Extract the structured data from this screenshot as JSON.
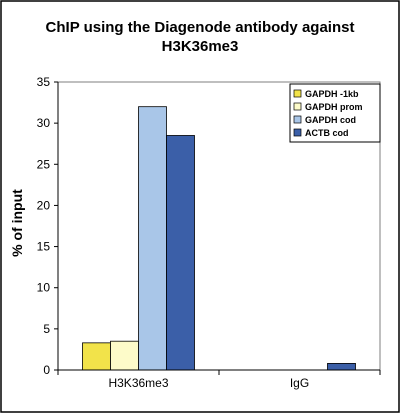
{
  "chart_data": {
    "type": "bar",
    "title": "ChIP using the Diagenode antibody against H3K36me3",
    "title_lines": [
      "ChIP using the Diagenode antibody against",
      "H3K36me3"
    ],
    "ylabel": "% of input",
    "xlabel": "",
    "categories": [
      "H3K36me3",
      "IgG"
    ],
    "ylim": [
      0,
      35
    ],
    "yticks": [
      0,
      5,
      10,
      15,
      20,
      25,
      30,
      35
    ],
    "grid": false,
    "legend_position": "top-right",
    "series": [
      {
        "name": "GAPDH -1kb",
        "color": "#f2e34a",
        "values": [
          3.3,
          0.0
        ]
      },
      {
        "name": "GAPDH prom",
        "color": "#fdfbc9",
        "values": [
          3.5,
          0.0
        ]
      },
      {
        "name": "GAPDH cod",
        "color": "#a9c6e8",
        "values": [
          32.0,
          0.0
        ]
      },
      {
        "name": "ACTB cod",
        "color": "#3b5fa8",
        "values": [
          28.5,
          0.8
        ]
      }
    ]
  }
}
